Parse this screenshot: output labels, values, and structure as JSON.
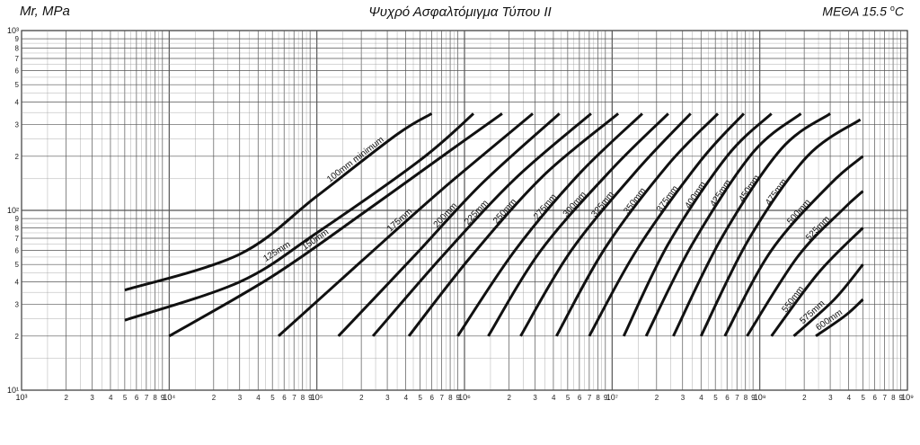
{
  "header": {
    "left": "Mr, MPa",
    "title": "Ψυχρό Ασφαλτόμιγμα Τύπου ΙΙ",
    "right_prefix": "ΜΕΘΑ 15.5 ",
    "right_sup": "o",
    "right_suffix": "C"
  },
  "chart_data": {
    "type": "line",
    "title": "Ψυχρό Ασφαλτόμιγμα Τύπου ΙΙ",
    "xlabel": "",
    "ylabel": "Mr, MPa",
    "x_scale": "log",
    "y_scale": "log",
    "xlim": [
      1000,
      1000000000
    ],
    "ylim": [
      10,
      1000
    ],
    "grid": true,
    "x_ticks": [
      "10³",
      "2",
      "3",
      "4",
      "5",
      "6",
      "7",
      "8",
      "9",
      "10⁴",
      "2",
      "3",
      "4",
      "5",
      "6",
      "7",
      "8",
      "9",
      "10⁵",
      "2",
      "3",
      "4",
      "5",
      "6",
      "7",
      "8",
      "9",
      "10⁶",
      "2",
      "3",
      "4",
      "5",
      "6",
      "7",
      "8",
      "9",
      "10⁷",
      "2",
      "3",
      "4",
      "5",
      "6",
      "7",
      "8",
      "9",
      "10⁸",
      "2",
      "3",
      "4",
      "5",
      "6",
      "7",
      "8",
      "9",
      "10⁹"
    ],
    "y_ticks": [
      "10¹",
      "2",
      "3",
      "4",
      "5",
      "6",
      "7",
      "8",
      "9",
      "10²",
      "2",
      "3",
      "4",
      "5",
      "6",
      "7",
      "8",
      "9",
      "10³"
    ],
    "series": [
      {
        "name": "100mm minimum",
        "points": [
          [
            5000,
            36
          ],
          [
            30000,
            57
          ],
          [
            100000,
            120
          ],
          [
            350000,
            265
          ],
          [
            600000,
            345
          ]
        ]
      },
      {
        "name": "125mm",
        "points": [
          [
            5000,
            24.5
          ],
          [
            30000,
            40
          ],
          [
            100000,
            75
          ],
          [
            500000,
            190
          ],
          [
            1150000,
            345
          ]
        ]
      },
      {
        "name": "150mm",
        "points": [
          [
            10000,
            20
          ],
          [
            50000,
            43
          ],
          [
            200000,
            95
          ],
          [
            800000,
            215
          ],
          [
            1800000,
            345
          ]
        ]
      },
      {
        "name": "175mm",
        "points": [
          [
            55000,
            20
          ],
          [
            200000,
            52
          ],
          [
            700000,
            130
          ],
          [
            2900000,
            345
          ]
        ]
      },
      {
        "name": "200mm",
        "points": [
          [
            140000,
            20
          ],
          [
            450000,
            55
          ],
          [
            1300000,
            140
          ],
          [
            4400000,
            345
          ]
        ]
      },
      {
        "name": "225mm",
        "points": [
          [
            240000,
            20
          ],
          [
            700000,
            55
          ],
          [
            2200000,
            150
          ],
          [
            7200000,
            345
          ]
        ]
      },
      {
        "name": "250mm",
        "points": [
          [
            420000,
            20
          ],
          [
            1100000,
            55
          ],
          [
            3400000,
            155
          ],
          [
            11000000,
            345
          ]
        ]
      },
      {
        "name": "275mm",
        "points": [
          [
            900000,
            20
          ],
          [
            2200000,
            60
          ],
          [
            6000000,
            160
          ],
          [
            16000000,
            345
          ]
        ]
      },
      {
        "name": "300mm",
        "points": [
          [
            1450000,
            20
          ],
          [
            3300000,
            60
          ],
          [
            10000000,
            170
          ],
          [
            24000000,
            345
          ]
        ]
      },
      {
        "name": "325mm",
        "points": [
          [
            2400000,
            20
          ],
          [
            5300000,
            60
          ],
          [
            15000000,
            170
          ],
          [
            34000000,
            345
          ]
        ]
      },
      {
        "name": "350mm",
        "points": [
          [
            4200000,
            20
          ],
          [
            9000000,
            62
          ],
          [
            24000000,
            180
          ],
          [
            52000000,
            345
          ]
        ]
      },
      {
        "name": "375mm",
        "points": [
          [
            7000000,
            20
          ],
          [
            15000000,
            62
          ],
          [
            40000000,
            190
          ],
          [
            78000000,
            345
          ]
        ]
      },
      {
        "name": "400mm",
        "points": [
          [
            12000000,
            20
          ],
          [
            24000000,
            65
          ],
          [
            60000000,
            200
          ],
          [
            120000000,
            345
          ]
        ]
      },
      {
        "name": "425mm",
        "points": [
          [
            17000000,
            20
          ],
          [
            35000000,
            65
          ],
          [
            90000000,
            210
          ],
          [
            190000000,
            345
          ]
        ]
      },
      {
        "name": "450mm",
        "points": [
          [
            26000000,
            20
          ],
          [
            55000000,
            70
          ],
          [
            140000000,
            220
          ],
          [
            300000000,
            345
          ]
        ]
      },
      {
        "name": "475mm",
        "points": [
          [
            40000000,
            20
          ],
          [
            85000000,
            70
          ],
          [
            210000000,
            200
          ],
          [
            480000000,
            320
          ]
        ]
      },
      {
        "name": "500mm",
        "points": [
          [
            58000000,
            20
          ],
          [
            120000000,
            60
          ],
          [
            300000000,
            140
          ],
          [
            500000000,
            200
          ]
        ]
      },
      {
        "name": "525mm",
        "points": [
          [
            82000000,
            20
          ],
          [
            180000000,
            55
          ],
          [
            360000000,
            100
          ],
          [
            500000000,
            128
          ]
        ]
      },
      {
        "name": "550mm",
        "points": [
          [
            120000000,
            20
          ],
          [
            250000000,
            45
          ],
          [
            500000000,
            80
          ]
        ]
      },
      {
        "name": "575mm",
        "points": [
          [
            170000000,
            20
          ],
          [
            320000000,
            32
          ],
          [
            500000000,
            50
          ]
        ]
      },
      {
        "name": "600mm",
        "points": [
          [
            240000000,
            20
          ],
          [
            380000000,
            26
          ],
          [
            500000000,
            32
          ]
        ]
      }
    ]
  }
}
